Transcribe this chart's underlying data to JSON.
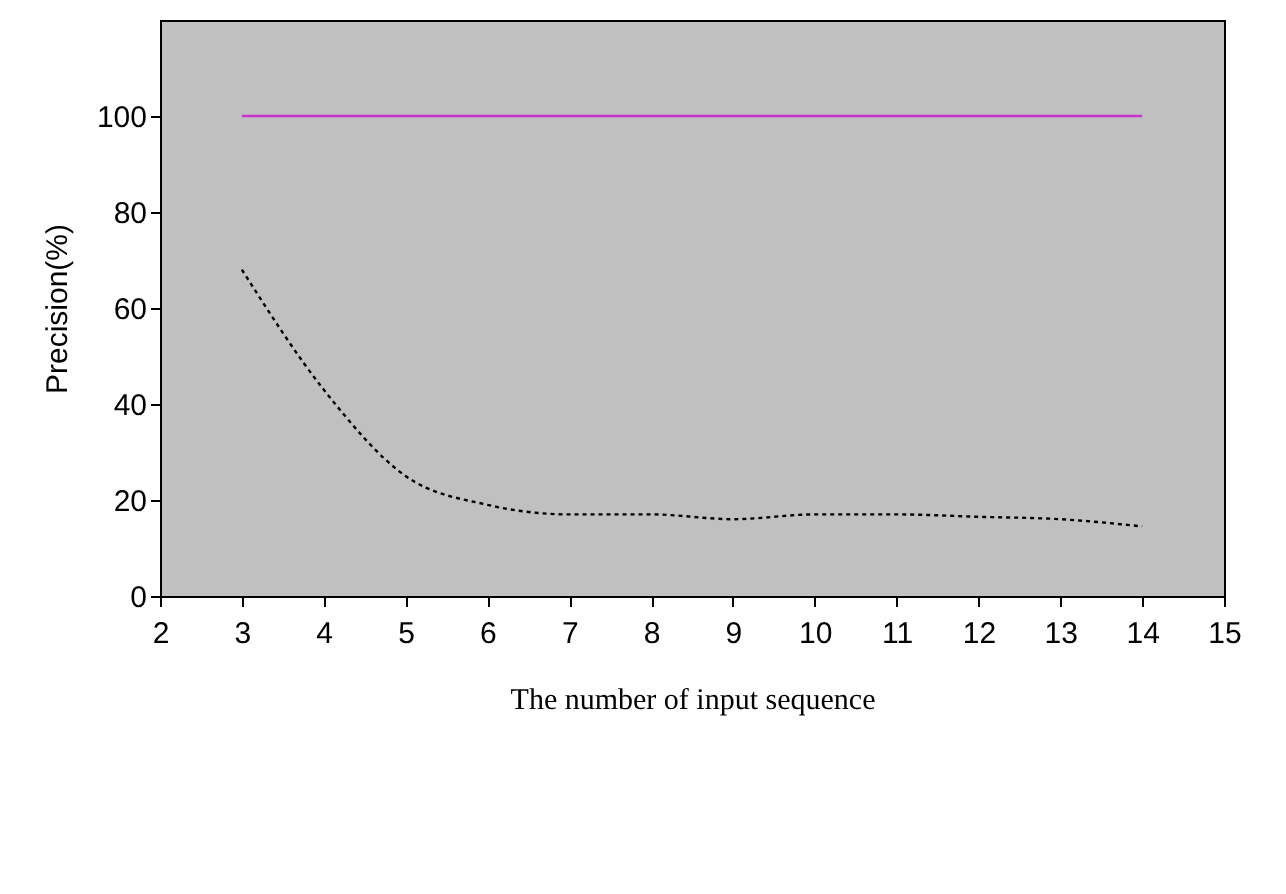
{
  "chart_data": {
    "type": "line",
    "xlabel": "The number of input sequence",
    "ylabel": "Precision(%)",
    "x": [
      3,
      4,
      5,
      6,
      7,
      8,
      9,
      10,
      11,
      12,
      13,
      14
    ],
    "series": [
      {
        "color": "#cc33cc",
        "line_style": "solid",
        "values": [
          100,
          100,
          100,
          100,
          100,
          100,
          100,
          100,
          100,
          100,
          100,
          100
        ]
      },
      {
        "color": "#000000",
        "line_style": "dotted",
        "values": [
          68,
          43,
          25,
          19,
          17,
          17,
          16,
          17,
          17,
          16.5,
          16,
          14.5
        ]
      }
    ],
    "xlim": [
      2,
      15
    ],
    "xticks": [
      2,
      3,
      4,
      5,
      6,
      7,
      8,
      9,
      10,
      11,
      12,
      13,
      14,
      15
    ],
    "ylim": [
      0,
      120
    ],
    "yticks": [
      0,
      20,
      40,
      60,
      80,
      100
    ],
    "grid": false
  }
}
